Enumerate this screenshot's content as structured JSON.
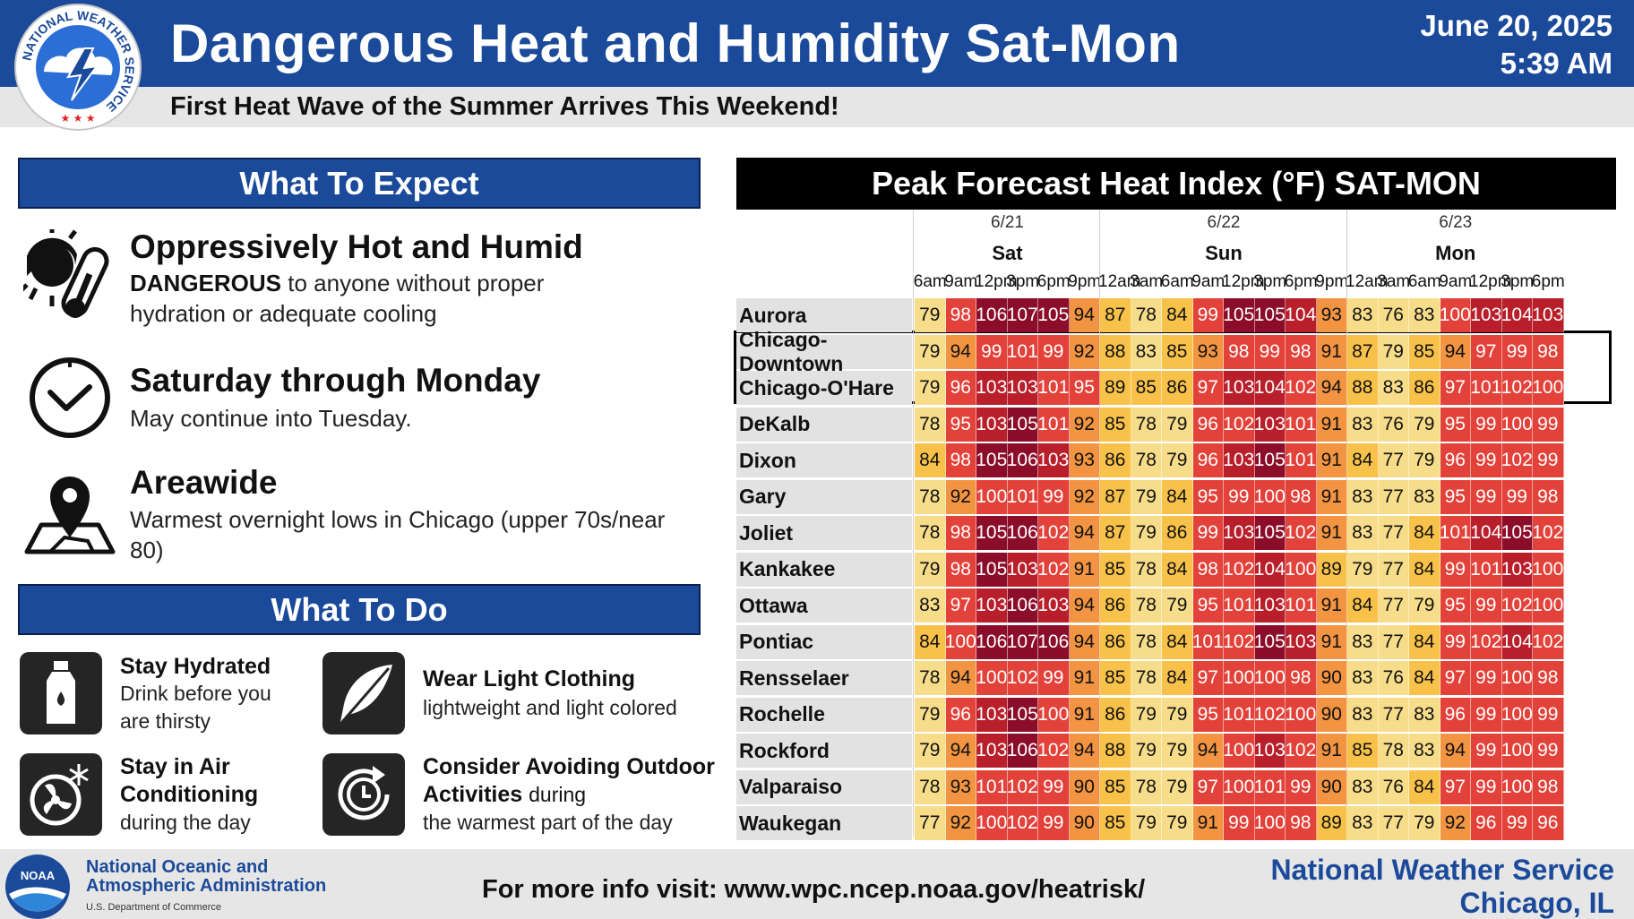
{
  "header": {
    "title": "Dangerous Heat and Humidity Sat-Mon",
    "subtitle": "First Heat Wave of the Summer Arrives This Weekend!",
    "date": "June 20, 2025",
    "time": "5:39 AM",
    "logo_text": "NATIONAL WEATHER SERVICE"
  },
  "what_to_expect": {
    "heading": "What To Expect",
    "items": [
      {
        "icon": "sun-thermometer-icon",
        "title": "Oppressively Hot and Humid",
        "emphasis": "DANGEROUS",
        "body": " to anyone without proper hydration or adequate cooling"
      },
      {
        "icon": "clock-icon",
        "title": "Saturday through Monday",
        "body": "May continue into Tuesday."
      },
      {
        "icon": "map-pin-icon",
        "title": "Areawide",
        "body": "Warmest overnight lows in Chicago (upper 70s/near 80)"
      }
    ]
  },
  "what_to_do": {
    "heading": "What To Do",
    "items": [
      {
        "icon": "water-bottle-icon",
        "title": "Stay Hydrated",
        "body": "Drink before you are thirsty"
      },
      {
        "icon": "feather-icon",
        "title": "Wear Light Clothing",
        "body": "lightweight and light colored"
      },
      {
        "icon": "fan-snowflake-icon",
        "title": "Stay in Air Conditioning",
        "body": "during the day"
      },
      {
        "icon": "clock-rotate-icon",
        "title": "Consider Avoiding Outdoor Activities",
        "title_suffix": "during",
        "body": "the warmest part of the day"
      }
    ]
  },
  "heat_table": {
    "title": "Peak Forecast Heat Index (°F) SAT-MON",
    "days": [
      {
        "date": "6/21",
        "name": "Sat",
        "hours": [
          "6am",
          "9am",
          "12pm",
          "3pm",
          "6pm",
          "9pm"
        ]
      },
      {
        "date": "6/22",
        "name": "Sun",
        "hours": [
          "12am",
          "3am",
          "6am",
          "9am",
          "12pm",
          "3pm",
          "6pm",
          "9pm"
        ]
      },
      {
        "date": "6/23",
        "name": "Mon",
        "hours": [
          "12am",
          "3am",
          "6am",
          "9am",
          "12pm",
          "3pm",
          "6pm"
        ]
      }
    ],
    "highlighted": [
      "Chicago-Downtown",
      "Chicago-O'Hare"
    ],
    "rows": [
      {
        "city": "Aurora",
        "values": [
          79,
          98,
          106,
          107,
          105,
          94,
          87,
          78,
          84,
          99,
          105,
          105,
          104,
          93,
          83,
          76,
          83,
          100,
          103,
          104,
          103
        ]
      },
      {
        "city": "Chicago-Downtown",
        "values": [
          79,
          94,
          99,
          101,
          99,
          92,
          88,
          83,
          85,
          93,
          98,
          99,
          98,
          91,
          87,
          79,
          85,
          94,
          97,
          99,
          98
        ]
      },
      {
        "city": "Chicago-O'Hare",
        "values": [
          79,
          96,
          103,
          103,
          101,
          95,
          89,
          85,
          86,
          97,
          103,
          104,
          102,
          94,
          88,
          83,
          86,
          97,
          101,
          102,
          100
        ]
      },
      {
        "city": "DeKalb",
        "values": [
          78,
          95,
          103,
          105,
          101,
          92,
          85,
          78,
          79,
          96,
          102,
          103,
          101,
          91,
          83,
          76,
          79,
          95,
          99,
          100,
          99
        ]
      },
      {
        "city": "Dixon",
        "values": [
          84,
          98,
          105,
          106,
          103,
          93,
          86,
          78,
          79,
          96,
          103,
          105,
          101,
          91,
          84,
          77,
          79,
          96,
          99,
          102,
          99
        ]
      },
      {
        "city": "Gary",
        "values": [
          78,
          92,
          100,
          101,
          99,
          92,
          87,
          79,
          84,
          95,
          99,
          100,
          98,
          91,
          83,
          77,
          83,
          95,
          99,
          99,
          98
        ]
      },
      {
        "city": "Joliet",
        "values": [
          78,
          98,
          105,
          106,
          102,
          94,
          87,
          79,
          86,
          99,
          103,
          105,
          102,
          91,
          83,
          77,
          84,
          101,
          104,
          105,
          102
        ]
      },
      {
        "city": "Kankakee",
        "values": [
          79,
          98,
          105,
          103,
          102,
          91,
          85,
          78,
          84,
          98,
          102,
          104,
          100,
          89,
          79,
          77,
          84,
          99,
          101,
          103,
          100
        ]
      },
      {
        "city": "Ottawa",
        "values": [
          83,
          97,
          103,
          106,
          103,
          94,
          86,
          78,
          79,
          95,
          101,
          103,
          101,
          91,
          84,
          77,
          79,
          95,
          99,
          102,
          100
        ]
      },
      {
        "city": "Pontiac",
        "values": [
          84,
          100,
          106,
          107,
          106,
          94,
          86,
          78,
          84,
          101,
          102,
          105,
          103,
          91,
          83,
          77,
          84,
          99,
          102,
          104,
          102
        ]
      },
      {
        "city": "Rensselaer",
        "values": [
          78,
          94,
          100,
          102,
          99,
          91,
          85,
          78,
          84,
          97,
          100,
          100,
          98,
          90,
          83,
          76,
          84,
          97,
          99,
          100,
          98
        ]
      },
      {
        "city": "Rochelle",
        "values": [
          79,
          96,
          103,
          105,
          100,
          91,
          86,
          79,
          79,
          95,
          101,
          102,
          100,
          90,
          83,
          77,
          83,
          96,
          99,
          100,
          99
        ]
      },
      {
        "city": "Rockford",
        "values": [
          79,
          94,
          103,
          106,
          102,
          94,
          88,
          79,
          79,
          94,
          100,
          103,
          102,
          91,
          85,
          78,
          83,
          94,
          99,
          100,
          99
        ]
      },
      {
        "city": "Valparaiso",
        "values": [
          78,
          93,
          101,
          102,
          99,
          90,
          85,
          78,
          79,
          97,
          100,
          101,
          99,
          90,
          83,
          76,
          84,
          97,
          99,
          100,
          98
        ]
      },
      {
        "city": "Waukegan",
        "values": [
          77,
          92,
          100,
          102,
          99,
          90,
          85,
          79,
          79,
          91,
          99,
          100,
          98,
          89,
          83,
          77,
          79,
          92,
          96,
          99,
          96
        ]
      }
    ],
    "colors": {
      "pale": "#f7dc8a",
      "yellow": "#f8c24a",
      "orange": "#f29441",
      "red": "#e3423a",
      "darkred": "#b81f2b",
      "maroon": "#8b0d29"
    }
  },
  "footer": {
    "noaa_name_line1": "National Oceanic and",
    "noaa_name_line2": "Atmospheric Administration",
    "noaa_dept": "U.S. Department of Commerce",
    "noaa_logo_text": "NOAA",
    "info": "For more info visit: www.wpc.ncep.noaa.gov/heatrisk/",
    "office_line1": "National Weather Service",
    "office_line2": "Chicago, IL"
  }
}
